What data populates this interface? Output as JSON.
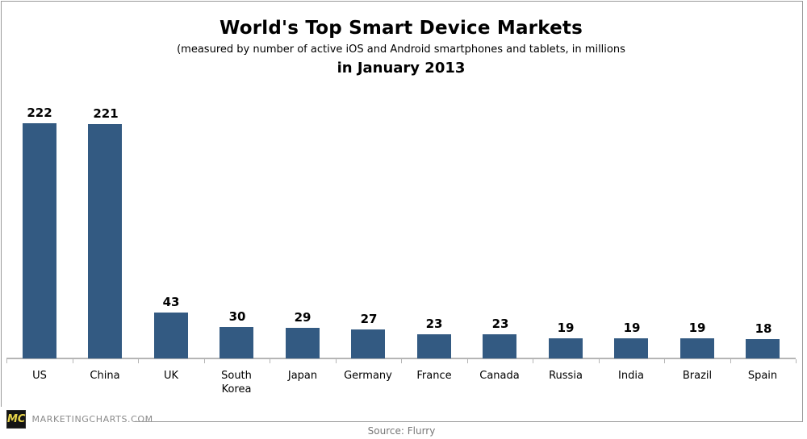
{
  "header": {
    "title": "World's Top Smart Device Markets",
    "subtitle": "(measured by number of active iOS and Android smartphones and tablets, in millions",
    "subtitle2": "in January 2013"
  },
  "chart_data": {
    "type": "bar",
    "categories": [
      "US",
      "China",
      "UK",
      "South Korea",
      "Japan",
      "Germany",
      "France",
      "Canada",
      "Russia",
      "India",
      "Brazil",
      "Spain"
    ],
    "values": [
      222,
      221,
      43,
      30,
      29,
      27,
      23,
      23,
      19,
      19,
      19,
      18
    ],
    "title": "World's Top Smart Device Markets",
    "xlabel": "",
    "ylabel": "",
    "unit": "millions",
    "ylim": [
      0,
      240
    ],
    "grid": false,
    "legend": false,
    "data_labels": true,
    "bar_color": "#335a82",
    "axis_color": "#b5b5b5"
  },
  "footer": {
    "logo_text": "MC",
    "site_text": "MARKETINGCHARTS.COM",
    "source_text": "Source: Flurry"
  }
}
